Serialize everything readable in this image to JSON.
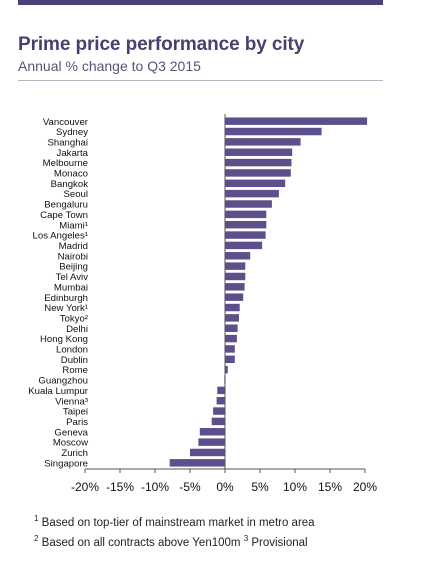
{
  "header": {
    "title": "Prime price performance by city",
    "subtitle": "Annual % change to Q3 2015"
  },
  "colors": {
    "bar": "#5c4f8c",
    "top_bar": "#4a3f78",
    "axis": "#555555"
  },
  "chart_data": {
    "type": "bar",
    "orientation": "horizontal",
    "title": "Prime price performance by city",
    "subtitle": "Annual % change to Q3 2015",
    "xlabel": "",
    "ylabel": "",
    "xlim": [
      -20,
      20
    ],
    "x_ticks": [
      -20,
      -15,
      -10,
      -5,
      0,
      5,
      10,
      15,
      20
    ],
    "x_tick_labels": [
      "-20%",
      "-15%",
      "-10%",
      "-5%",
      "0%",
      "5%",
      "10%",
      "15%",
      "20%"
    ],
    "grid": false,
    "categories": [
      "Vancouver",
      "Sydney",
      "Shanghai",
      "Jakarta",
      "Melbourne",
      "Monaco",
      "Bangkok",
      "Seoul",
      "Bengaluru",
      "Cape Town",
      "Miami¹",
      "Los Angeles¹",
      "Madrid",
      "Nairobi",
      "Beijing",
      "Tel Aviv",
      "Mumbai",
      "Edinburgh",
      "New York¹",
      "Tokyo²",
      "Delhi",
      "Hong Kong",
      "London",
      "Dublin",
      "Rome",
      "Guangzhou",
      "Kuala Lumpur",
      "Vienna³",
      "Taipei",
      "Paris",
      "Geneva",
      "Moscow",
      "Zurich",
      "Singapore"
    ],
    "values": [
      20.3,
      13.8,
      10.8,
      9.6,
      9.5,
      9.4,
      8.6,
      7.7,
      6.7,
      5.9,
      5.9,
      5.8,
      5.3,
      3.6,
      2.9,
      2.9,
      2.8,
      2.6,
      2.1,
      2.0,
      1.8,
      1.7,
      1.4,
      1.4,
      0.4,
      -0.1,
      -1.1,
      -1.2,
      -1.7,
      -1.9,
      -3.6,
      -3.8,
      -5.0,
      -7.9
    ]
  },
  "footnotes": {
    "note1_marker": "1",
    "note1_text": " Based on top-tier of mainstream market in metro area",
    "note2_marker": "2",
    "note2_text": " Based on all contracts above Yen100m ",
    "note3_marker": "3",
    "note3_text": " Provisional"
  }
}
